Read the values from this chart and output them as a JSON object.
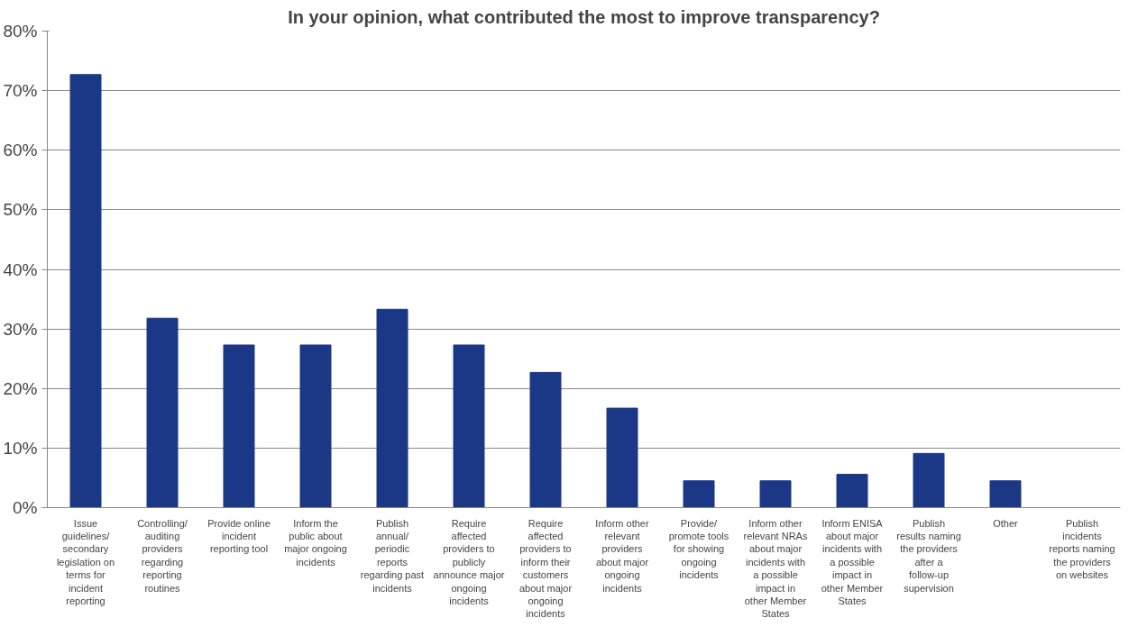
{
  "chart_data": {
    "type": "bar",
    "title": "In your opinion, what contributed the most to improve transparency?",
    "categories": [
      "Issue guidelines/ secondary legislation on terms for incident reporting",
      "Controlling/ auditing providers regarding reporting routines",
      "Provide online incident reporting tool",
      "Inform the public about major ongoing incidents",
      "Publish annual/ periodic reports regarding past incidents",
      "Require affected providers to publicly announce major ongoing incidents",
      "Require affected providers to inform their customers about major ongoing incidents",
      "Inform other relevant providers about major ongoing incidents",
      "Provide/ promote tools for showing ongoing incidents",
      "Inform other relevant NRAs about major incidents with a possible impact in other Member States",
      "Inform ENISA about major incidents with a possible impact in other Member States",
      "Publish results naming the providers after a follow-up supervision",
      "Other",
      "Publish incidents reports naming the providers on websites"
    ],
    "values": [
      72.7,
      31.8,
      27.3,
      27.3,
      33.3,
      27.3,
      22.7,
      16.7,
      4.5,
      4.5,
      5.6,
      9.1,
      4.5,
      0
    ],
    "color": "#1b3887",
    "ylim": [
      0,
      80
    ],
    "yticks": [
      {
        "value": 0,
        "label": "0%"
      },
      {
        "value": 10,
        "label": "10%"
      },
      {
        "value": 20,
        "label": "20%"
      },
      {
        "value": 30,
        "label": "30%"
      },
      {
        "value": 40,
        "label": "40%"
      },
      {
        "value": 50,
        "label": "50%"
      },
      {
        "value": 60,
        "label": "60%"
      },
      {
        "value": 70,
        "label": "70%"
      },
      {
        "value": 80,
        "label": "80%"
      }
    ],
    "grid": "y"
  }
}
